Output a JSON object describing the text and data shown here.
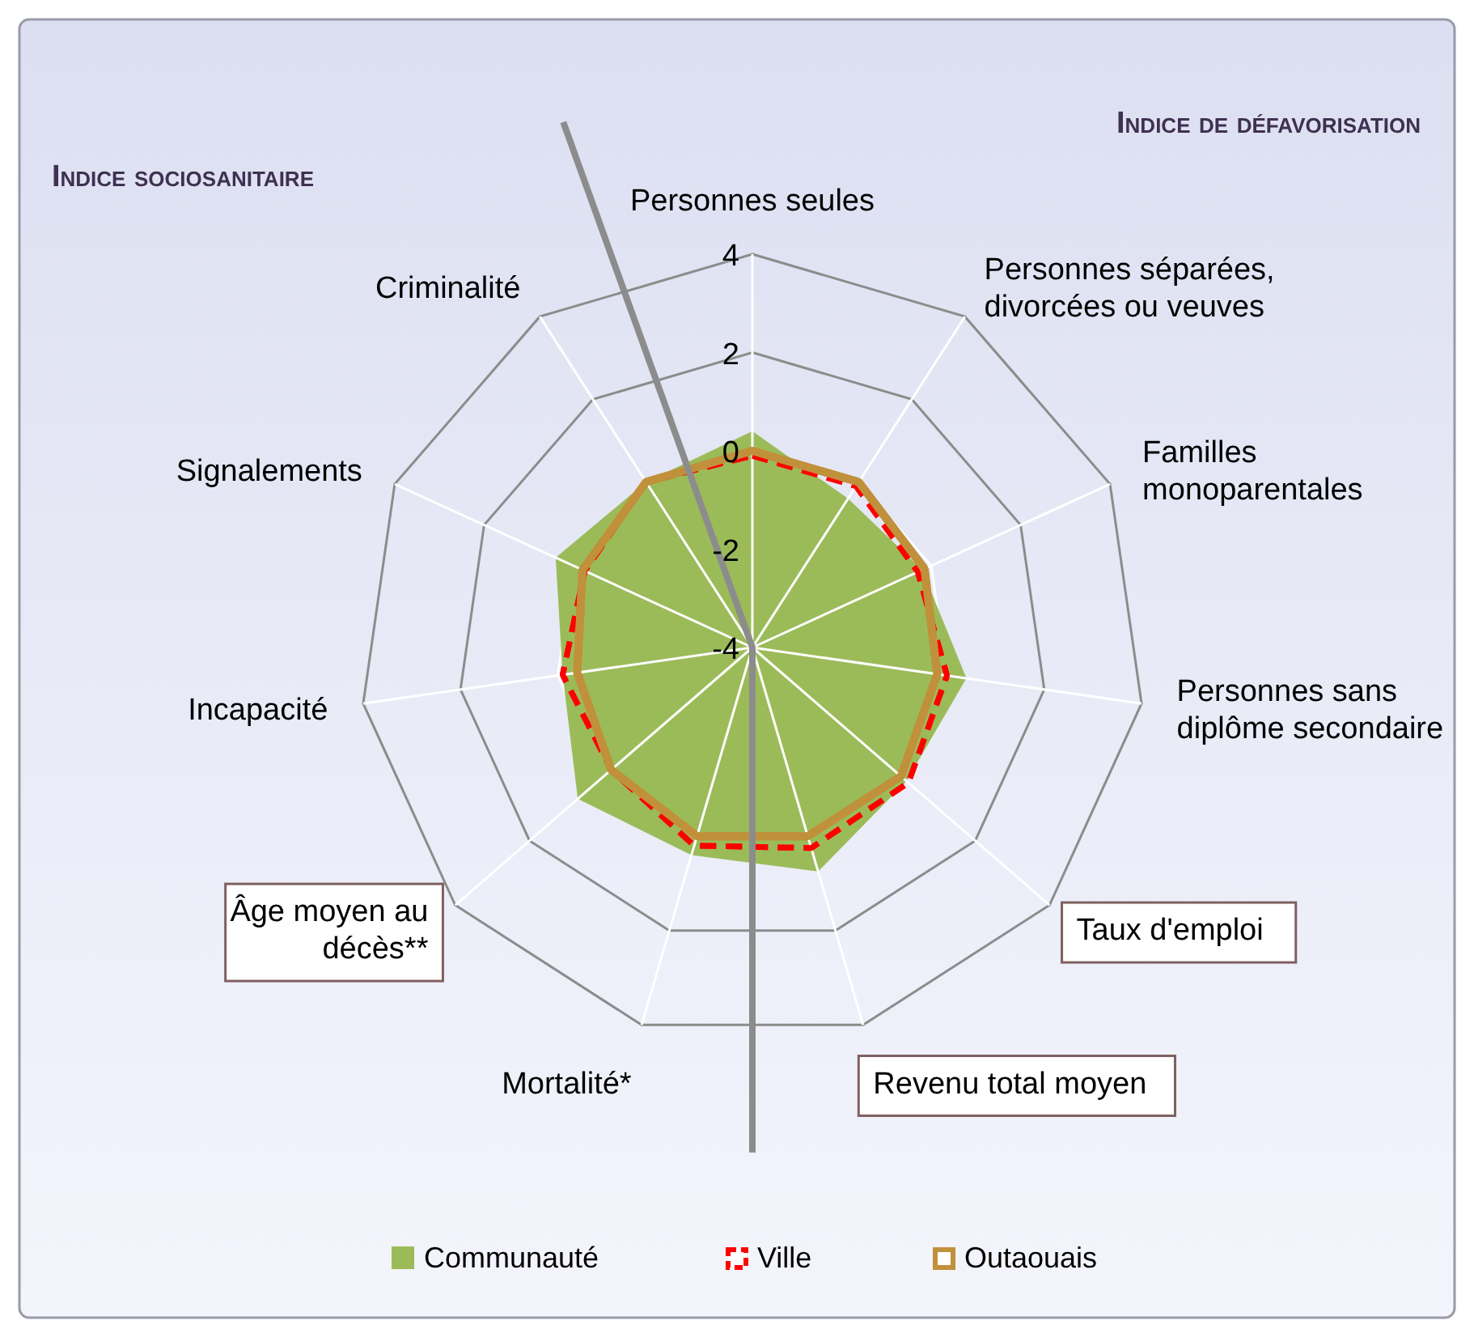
{
  "chart_data": {
    "type": "radar",
    "categories": [
      "Personnes seules",
      "Personnes séparées, divorcées ou veuves",
      "Familles monoparentales",
      "Personnes sans diplôme secondaire",
      "Taux d'emploi",
      "Revenu total moyen",
      "Mortalité*",
      "Âge moyen au décès**",
      "Incapacité",
      "Signalements",
      "Criminalité"
    ],
    "series": [
      {
        "name": "Communauté",
        "color": "#9bbb59",
        "type": "area",
        "values": [
          0.4,
          -0.4,
          -0.2,
          0.4,
          0.15,
          0.75,
          0.4,
          0.7,
          -0.1,
          0.4,
          0
        ]
      },
      {
        "name": "Ville",
        "color": "#ff0000",
        "line_style": "dashed",
        "values": [
          -0.1,
          -0.1,
          -0.3,
          0,
          0.2,
          0.25,
          0.2,
          -0.2,
          -0.1,
          -0.25,
          0
        ]
      },
      {
        "name": "Outaouais",
        "color": "#c0913a",
        "values": [
          0,
          0,
          -0.15,
          -0.2,
          0,
          0,
          0,
          -0.2,
          -0.4,
          -0.2,
          0
        ]
      }
    ],
    "ylim": [
      -4,
      4
    ],
    "yticks": [
      -4,
      -2,
      0,
      2,
      4
    ],
    "grid": true,
    "legend": "bottom",
    "marker": "none",
    "annotations": [
      "Indice sociosanitaire",
      "Indice de défavorisation"
    ]
  }
}
